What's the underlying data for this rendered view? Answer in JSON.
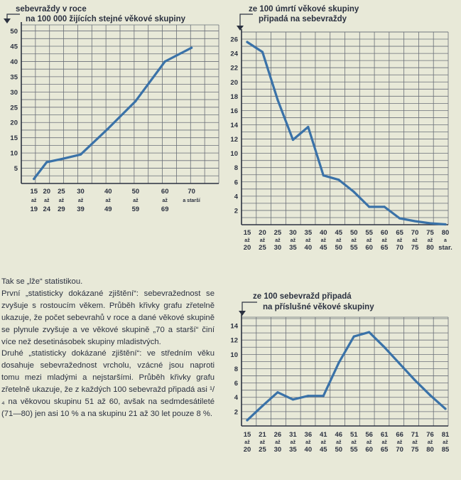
{
  "chart_data": [
    {
      "type": "line",
      "title": "sebevraždy v roce",
      "subtitle": "na 100 000 žijících stejné věkové skupiny",
      "yticks": [
        "5",
        "10",
        "15",
        "20",
        "25",
        "30",
        "35",
        "40",
        "45",
        "50"
      ],
      "ylim": [
        0,
        52
      ],
      "xticks": [
        {
          "top": "15",
          "mid": "až",
          "bot": "19"
        },
        {
          "top": "20",
          "mid": "až",
          "bot": "24"
        },
        {
          "top": "25",
          "mid": "až",
          "bot": "29"
        },
        {
          "top": "30",
          "mid": "až",
          "bot": "39"
        },
        {
          "top": "40",
          "mid": "až",
          "bot": "49"
        },
        {
          "top": "50",
          "mid": "až",
          "bot": "59"
        },
        {
          "top": "60",
          "mid": "až",
          "bot": "69"
        },
        {
          "top": "70",
          "mid": "a starší",
          "bot": ""
        }
      ],
      "x": [
        15,
        20,
        25,
        30,
        40,
        50,
        60,
        70
      ],
      "values": [
        1.5,
        7,
        8,
        9.5,
        18,
        27,
        40,
        44.5
      ],
      "grid": true
    },
    {
      "type": "line",
      "title": "ze 100 úmrtí věkové skupiny",
      "subtitle": "připadá na sebevraždy",
      "yticks": [
        "2",
        "4",
        "6",
        "8",
        "10",
        "12",
        "14",
        "16",
        "18",
        "20",
        "22",
        "24",
        "26"
      ],
      "ylim": [
        0,
        27
      ],
      "xticks": [
        {
          "top": "15",
          "mid": "až",
          "bot": "20"
        },
        {
          "top": "20",
          "mid": "až",
          "bot": "25"
        },
        {
          "top": "25",
          "mid": "až",
          "bot": "30"
        },
        {
          "top": "30",
          "mid": "až",
          "bot": "35"
        },
        {
          "top": "35",
          "mid": "až",
          "bot": "40"
        },
        {
          "top": "40",
          "mid": "až",
          "bot": "45"
        },
        {
          "top": "45",
          "mid": "až",
          "bot": "50"
        },
        {
          "top": "50",
          "mid": "až",
          "bot": "55"
        },
        {
          "top": "55",
          "mid": "až",
          "bot": "60"
        },
        {
          "top": "60",
          "mid": "až",
          "bot": "65"
        },
        {
          "top": "65",
          "mid": "až",
          "bot": "70"
        },
        {
          "top": "70",
          "mid": "až",
          "bot": "75"
        },
        {
          "top": "75",
          "mid": "až",
          "bot": "80"
        },
        {
          "top": "80",
          "mid": "a",
          "bot": "star."
        }
      ],
      "x": [
        15,
        20,
        25,
        30,
        35,
        40,
        45,
        50,
        55,
        60,
        65,
        70,
        75,
        80
      ],
      "values": [
        25.6,
        24.2,
        17.5,
        11.9,
        13.7,
        6.9,
        6.3,
        4.6,
        2.5,
        2.5,
        0.9,
        0.5,
        0.2,
        0.05
      ],
      "grid": true
    },
    {
      "type": "line",
      "title": "ze 100 sebevražd připadá",
      "subtitle": "na příslušné věkové skupiny",
      "yticks": [
        "2",
        "4",
        "6",
        "8",
        "10",
        "12",
        "14"
      ],
      "ylim": [
        0,
        15.2
      ],
      "xticks": [
        {
          "top": "15",
          "mid": "až",
          "bot": "20"
        },
        {
          "top": "21",
          "mid": "až",
          "bot": "25"
        },
        {
          "top": "26",
          "mid": "až",
          "bot": "30"
        },
        {
          "top": "31",
          "mid": "až",
          "bot": "35"
        },
        {
          "top": "36",
          "mid": "až",
          "bot": "40"
        },
        {
          "top": "41",
          "mid": "až",
          "bot": "45"
        },
        {
          "top": "46",
          "mid": "až",
          "bot": "50"
        },
        {
          "top": "51",
          "mid": "až",
          "bot": "55"
        },
        {
          "top": "56",
          "mid": "až",
          "bot": "60"
        },
        {
          "top": "61",
          "mid": "až",
          "bot": "65"
        },
        {
          "top": "66",
          "mid": "až",
          "bot": "70"
        },
        {
          "top": "71",
          "mid": "až",
          "bot": "75"
        },
        {
          "top": "76",
          "mid": "až",
          "bot": "80"
        },
        {
          "top": "81",
          "mid": "až",
          "bot": "85"
        }
      ],
      "x": [
        15,
        21,
        26,
        31,
        36,
        41,
        46,
        51,
        56,
        61,
        66,
        71,
        76,
        81
      ],
      "values": [
        0.8,
        2.8,
        4.7,
        3.7,
        4.2,
        4.2,
        8.8,
        12.5,
        13.1,
        11.0,
        8.7,
        6.4,
        4.3,
        2.4
      ],
      "grid": true
    }
  ],
  "text": {
    "paragraphs": [
      "Tak se „lže“ statistikou.",
      "První „statisticky dokázané zjištění“: sebevražednost se zvyšuje s rostoucím věkem. Průběh křivky grafu zřetelně ukazuje, že počet sebevrahů v roce a dané věkové skupině se plynule zvyšuje a ve věkové skupině „70 a starší“ činí více než desetinásobek skupiny mladistvých.",
      "Druhé „statisticky dokázané zjištění“: ve středním věku dosahuje sebevražednost vrcholu, vzácné jsou naproti tomu mezi mladými a nejstaršími. Průběh křivky grafu zřetelně ukazuje, že z každých 100 sebevražd připadá asi ¹/₄ na věkovou skupinu 51 až 60, avšak na sedmdesátileté (71—80) jen asi 10 % a na skupinu 21 až 30 let pouze 8 %."
    ]
  },
  "colors": {
    "line": "#3a72a8",
    "ink": "#2b3140",
    "paper": "#e8e9d8"
  }
}
